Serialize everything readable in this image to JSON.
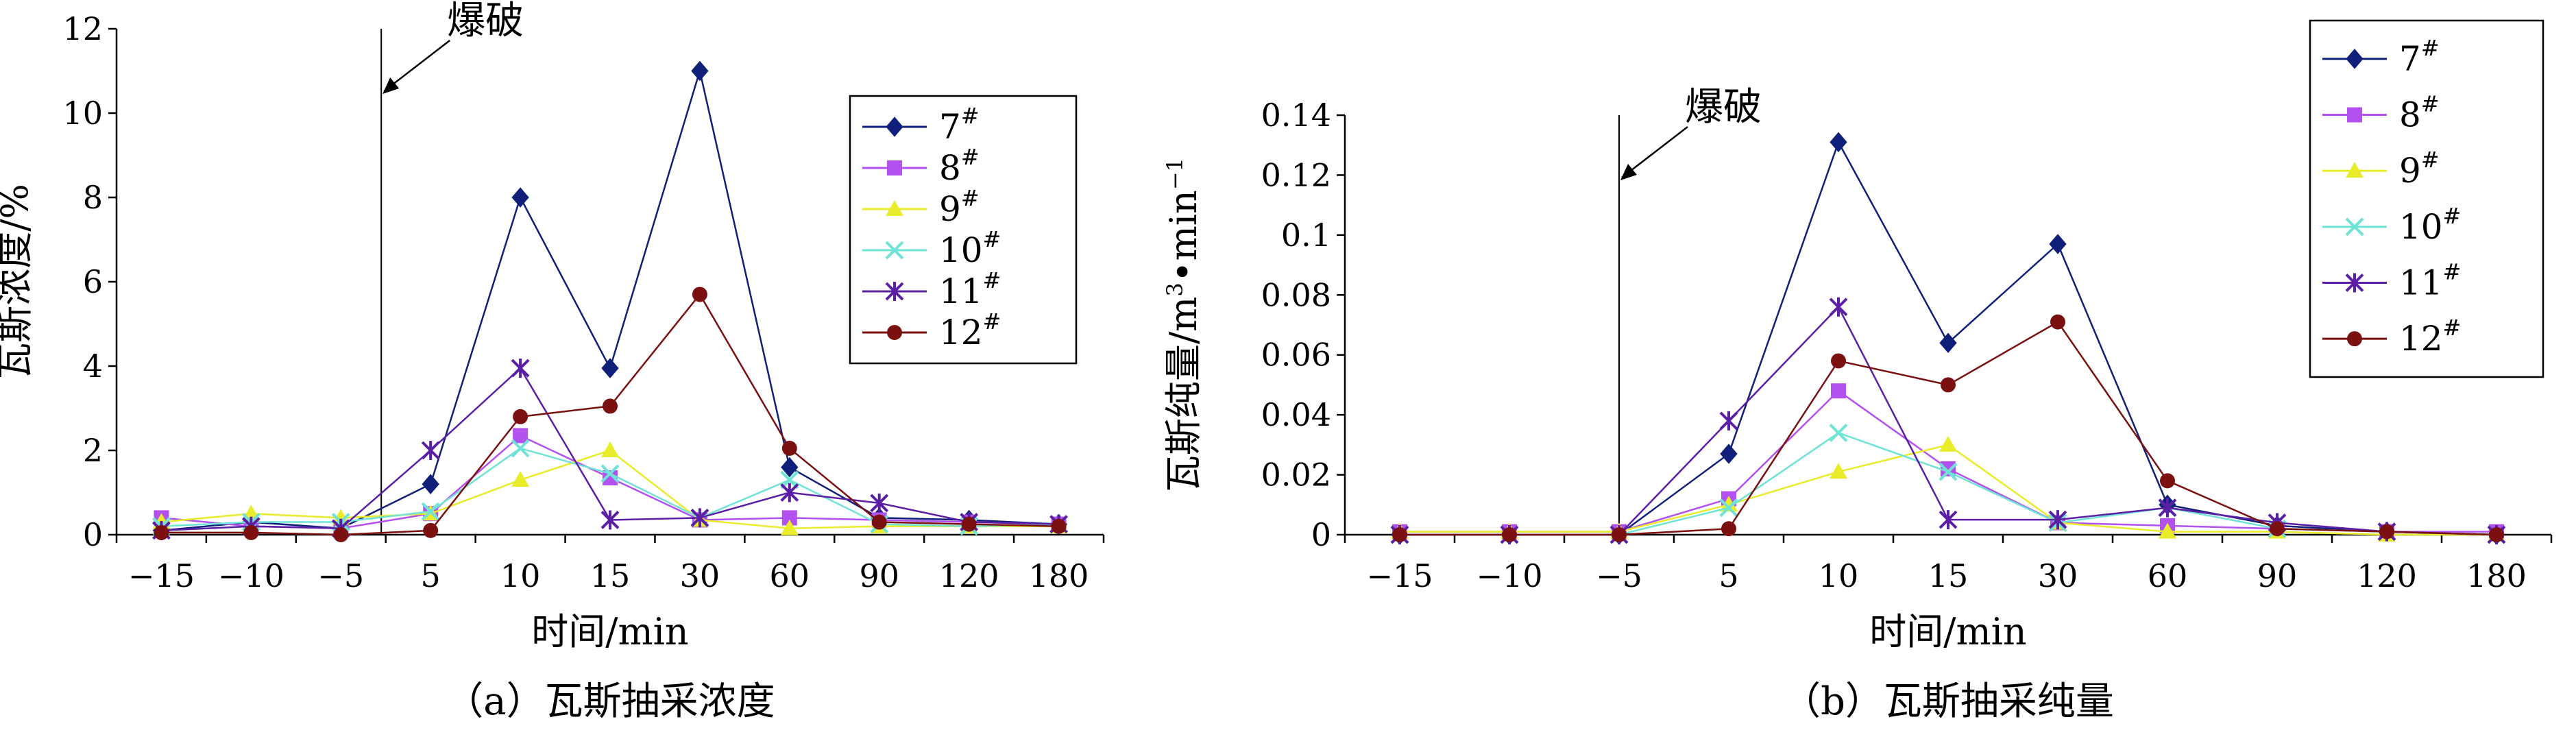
{
  "chart_data": [
    {
      "type": "line",
      "caption": "（a）瓦斯抽采浓度",
      "xlabel": "时间/min",
      "ylabel": "瓦斯浓度/%",
      "categories": [
        "−15",
        "−10",
        "−5",
        "5",
        "10",
        "15",
        "30",
        "60",
        "90",
        "120",
        "180"
      ],
      "yticks": [
        "0",
        "2",
        "4",
        "6",
        "8",
        "10",
        "12"
      ],
      "ylim": [
        0,
        12
      ],
      "annotation": {
        "text": "爆破",
        "between_categories": [
          "−5",
          "5"
        ],
        "position_fraction": 0.45
      },
      "legend_placement": "top-right",
      "series": [
        {
          "name": "7#",
          "base": "7",
          "sup": "#",
          "color": "#10207a",
          "marker": "diamond",
          "values": [
            0.1,
            0.3,
            0.15,
            1.2,
            8.0,
            3.95,
            11.0,
            1.6,
            0.4,
            0.35,
            0.25
          ]
        },
        {
          "name": "8#",
          "base": "8",
          "sup": "#",
          "color": "#b350f0",
          "marker": "square",
          "values": [
            0.4,
            0.2,
            0.15,
            0.5,
            2.35,
            1.35,
            0.35,
            0.4,
            0.35,
            0.3,
            0.25
          ]
        },
        {
          "name": "9#",
          "base": "9",
          "sup": "#",
          "color": "#e8ec2a",
          "marker": "triangle",
          "values": [
            0.3,
            0.5,
            0.4,
            0.5,
            1.3,
            2.0,
            0.35,
            0.15,
            0.2,
            0.2,
            0.2
          ]
        },
        {
          "name": "10#",
          "base": "10",
          "sup": "#",
          "color": "#6fe3d6",
          "marker": "x",
          "values": [
            0.2,
            0.3,
            0.3,
            0.55,
            2.05,
            1.45,
            0.4,
            1.3,
            0.25,
            0.2,
            0.25
          ]
        },
        {
          "name": "11#",
          "base": "11",
          "sup": "#",
          "color": "#5b1fa6",
          "marker": "asterisk",
          "values": [
            0.1,
            0.2,
            0.15,
            2.0,
            3.95,
            0.35,
            0.4,
            1.0,
            0.75,
            0.3,
            0.25
          ]
        },
        {
          "name": "12#",
          "base": "12",
          "sup": "#",
          "color": "#7a1010",
          "marker": "circle",
          "values": [
            0.05,
            0.05,
            0.0,
            0.1,
            2.8,
            3.05,
            5.7,
            2.05,
            0.3,
            0.25,
            0.2
          ]
        }
      ]
    },
    {
      "type": "line",
      "caption": "（b）瓦斯抽采纯量",
      "xlabel": "时间/min",
      "ylabel_parts": {
        "main": "瓦斯纯量/m",
        "sup1": "3",
        "mid": "•min",
        "sup2": "−1"
      },
      "categories": [
        "−15",
        "−10",
        "−5",
        "5",
        "10",
        "15",
        "30",
        "60",
        "90",
        "120",
        "180"
      ],
      "yticks": [
        "0",
        "0.02",
        "0.04",
        "0.06",
        "0.08",
        "0.1",
        "0.12",
        "0.14"
      ],
      "ylim": [
        0,
        0.14
      ],
      "annotation": {
        "text": "爆破",
        "between_categories": [
          "−5",
          "5"
        ],
        "position_fraction": 0.0
      },
      "legend_placement": "top-right",
      "series": [
        {
          "name": "7#",
          "base": "7",
          "sup": "#",
          "color": "#10207a",
          "marker": "diamond",
          "values": [
            0.0,
            0.0,
            0.0,
            0.027,
            0.131,
            0.064,
            0.097,
            0.01,
            0.003,
            0.001,
            0.0
          ]
        },
        {
          "name": "8#",
          "base": "8",
          "sup": "#",
          "color": "#b350f0",
          "marker": "square",
          "values": [
            0.001,
            0.001,
            0.001,
            0.012,
            0.048,
            0.022,
            0.004,
            0.003,
            0.002,
            0.001,
            0.001
          ]
        },
        {
          "name": "9#",
          "base": "9",
          "sup": "#",
          "color": "#e8ec2a",
          "marker": "triangle",
          "values": [
            0.001,
            0.001,
            0.001,
            0.01,
            0.021,
            0.03,
            0.004,
            0.001,
            0.001,
            0.0,
            0.0
          ]
        },
        {
          "name": "10#",
          "base": "10",
          "sup": "#",
          "color": "#6fe3d6",
          "marker": "x",
          "values": [
            0.0,
            0.0,
            0.0,
            0.009,
            0.034,
            0.021,
            0.004,
            0.009,
            0.002,
            0.001,
            0.0
          ]
        },
        {
          "name": "11#",
          "base": "11",
          "sup": "#",
          "color": "#5b1fa6",
          "marker": "asterisk",
          "values": [
            0.0,
            0.0,
            0.0,
            0.038,
            0.076,
            0.005,
            0.005,
            0.009,
            0.004,
            0.001,
            0.0
          ]
        },
        {
          "name": "12#",
          "base": "12",
          "sup": "#",
          "color": "#7a1010",
          "marker": "circle",
          "values": [
            0.0,
            0.0,
            0.0,
            0.002,
            0.058,
            0.05,
            0.071,
            0.018,
            0.002,
            0.001,
            0.0
          ]
        }
      ]
    }
  ]
}
